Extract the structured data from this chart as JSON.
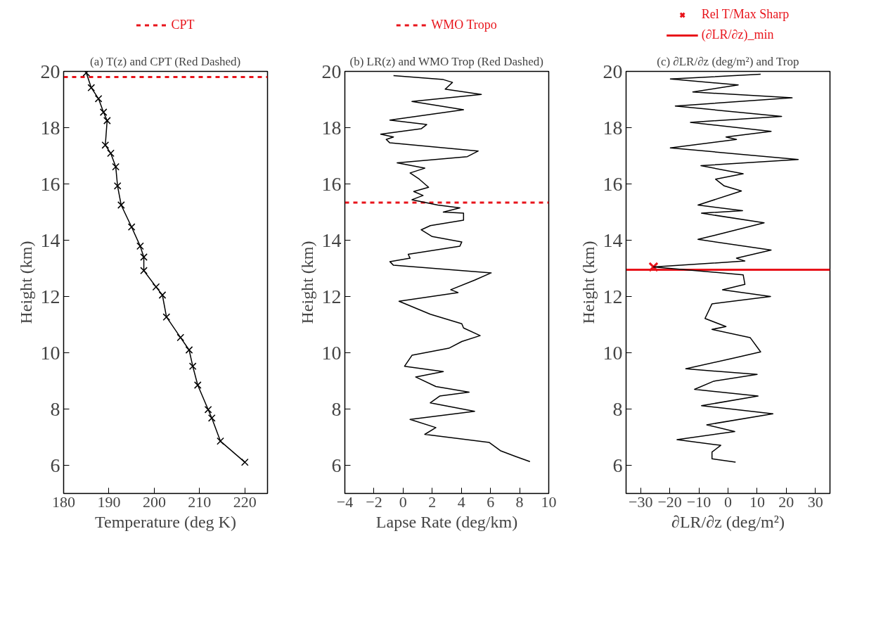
{
  "chart_data": [
    {
      "type": "line",
      "title": "(a) T(z) and CPT (Red Dashed)",
      "xlabel": "Temperature (deg K)",
      "ylabel": "Height (km)",
      "xlim": [
        180,
        225
      ],
      "xticks": [
        180,
        190,
        200,
        210,
        220
      ],
      "ylim": [
        5,
        20
      ],
      "yticks": [
        6,
        8,
        10,
        12,
        14,
        16,
        18,
        20
      ],
      "grid": false,
      "legend": "top",
      "marker": "cross",
      "series": [
        {
          "color": "#000000",
          "x": [
            220.0,
            214.6,
            212.7,
            211.9,
            209.6,
            208.5,
            207.7,
            205.8,
            202.7,
            201.8,
            200.4,
            197.7,
            197.7,
            196.9,
            195.0,
            192.7,
            191.9,
            191.5,
            190.4,
            189.2,
            189.6,
            188.8,
            187.7,
            186.1,
            185.0
          ],
          "values": [
            6.11,
            6.86,
            7.68,
            7.98,
            8.85,
            9.52,
            10.1,
            10.54,
            11.27,
            12.05,
            12.34,
            12.92,
            13.4,
            13.79,
            14.47,
            15.25,
            15.93,
            16.61,
            17.09,
            17.38,
            18.25,
            18.55,
            19.03,
            19.42,
            19.95
          ]
        }
      ],
      "ref_lines": [
        {
          "axis": "y",
          "value": 19.8,
          "label": "CPT",
          "color": "#e8141b",
          "line_style": "dashed"
        }
      ]
    },
    {
      "type": "line",
      "title": "(b) LR(z) and WMO Trop (Red Dashed)",
      "xlabel": "Lapse Rate (deg/km)",
      "ylabel": "Height (km)",
      "xlim": [
        -4,
        10
      ],
      "xticks": [
        -4,
        -2,
        0,
        2,
        4,
        6,
        8,
        10
      ],
      "ylim": [
        5,
        20
      ],
      "yticks": [
        6,
        8,
        10,
        12,
        14,
        16,
        18,
        20
      ],
      "grid": false,
      "legend": "top",
      "series": [
        {
          "color": "#000000",
          "x": [
            -0.66,
            2.76,
            3.39,
            2.89,
            5.37,
            0.61,
            4.15,
            -0.91,
            1.62,
            1.24,
            -1.54,
            -0.66,
            -1.16,
            -0.91,
            5.16,
            4.41,
            -0.41,
            1.49,
            0.48,
            1.11,
            1.75,
            0.73,
            1.37,
            0.61,
            2.38,
            3.9,
            2.76,
            4.15,
            4.15,
            1.87,
            1.24,
            2.0,
            4.03,
            3.9,
            0.35,
            0.48,
            -0.91,
            -0.66,
            6.05,
            4.91,
            3.27,
            3.77,
            -0.28,
            1.87,
            4.03,
            4.15,
            5.29,
            4.03,
            3.14,
            0.61,
            0.1,
            2.76,
            0.86,
            2.25,
            4.53,
            2.51,
            1.87,
            4.91,
            0.48,
            2.25,
            1.49,
            5.92,
            6.68,
            7.7,
            8.71
          ],
          "values": [
            19.85,
            19.71,
            19.61,
            19.37,
            19.18,
            18.93,
            18.64,
            18.27,
            18.11,
            17.96,
            17.77,
            17.67,
            17.58,
            17.46,
            17.17,
            16.97,
            16.75,
            16.56,
            16.39,
            16.17,
            15.88,
            15.73,
            15.59,
            15.44,
            15.25,
            15.15,
            15.0,
            14.96,
            14.71,
            14.52,
            14.37,
            14.13,
            13.94,
            13.79,
            13.5,
            13.36,
            13.24,
            13.11,
            12.84,
            12.58,
            12.24,
            12.14,
            11.83,
            11.37,
            11.03,
            10.88,
            10.61,
            10.4,
            10.16,
            9.91,
            9.52,
            9.33,
            9.14,
            8.8,
            8.6,
            8.46,
            8.22,
            7.92,
            7.63,
            7.34,
            7.1,
            6.81,
            6.52,
            6.32,
            6.13
          ]
        }
      ],
      "ref_lines": [
        {
          "axis": "y",
          "value": 15.34,
          "label": "WMO Tropo",
          "color": "#e8141b",
          "line_style": "dashed"
        }
      ]
    },
    {
      "type": "line",
      "title": "(c) ∂LR/∂z (deg/m²) and Trop",
      "xlabel": "∂LR/∂z (deg/m²)",
      "ylabel": "Height (km)",
      "xlim": [
        -35,
        35
      ],
      "xticks": [
        -30,
        -20,
        -10,
        0,
        10,
        20,
        30
      ],
      "ylim": [
        5,
        20
      ],
      "yticks": [
        6,
        8,
        10,
        12,
        14,
        16,
        18,
        20
      ],
      "grid": false,
      "legend": "top",
      "series": [
        {
          "color": "#e8141b",
          "type": "scatter",
          "marker": "cross",
          "name": "Rel T/Max Sharp",
          "x": [
            -25.6
          ],
          "values": [
            13.05
          ]
        },
        {
          "color": "#000000",
          "x": [
            11.2,
            -19.8,
            3.5,
            -12.1,
            22.0,
            -18.1,
            18.4,
            -12.9,
            14.8,
            -0.7,
            2.9,
            -19.8,
            24.1,
            -9.3,
            5.2,
            -4.3,
            -1.3,
            4.6,
            -10.3,
            5.0,
            -9.1,
            12.4,
            -4.3,
            -10.3,
            14.8,
            2.9,
            5.8,
            -25.6,
            5.2,
            5.8,
            -1.9,
            14.6,
            -5.5,
            -7.9,
            -0.7,
            -5.5,
            7.6,
            11.2,
            2.3,
            -14.5,
            10.0,
            -4.9,
            -11.5,
            10.3,
            -9.1,
            15.4,
            -7.3,
            2.3,
            -17.5,
            -2.5,
            -5.5,
            -5.5,
            2.6
          ],
          "values": [
            19.9,
            19.73,
            19.52,
            19.27,
            19.06,
            18.77,
            18.4,
            18.19,
            17.87,
            17.67,
            17.58,
            17.28,
            16.87,
            16.65,
            16.36,
            16.17,
            15.93,
            15.75,
            15.25,
            15.05,
            14.96,
            14.62,
            14.18,
            14.03,
            13.65,
            13.36,
            13.26,
            13.05,
            12.77,
            12.43,
            12.24,
            12.0,
            11.74,
            11.22,
            10.93,
            10.83,
            10.54,
            10.03,
            9.82,
            9.43,
            9.23,
            8.99,
            8.7,
            8.46,
            8.12,
            7.83,
            7.44,
            7.2,
            6.91,
            6.71,
            6.47,
            6.23,
            6.11
          ]
        }
      ],
      "ref_lines": [
        {
          "axis": "y",
          "value": 12.95,
          "label": "(∂LR/∂z)_min",
          "color": "#e8141b",
          "line_style": "solid"
        }
      ]
    }
  ]
}
